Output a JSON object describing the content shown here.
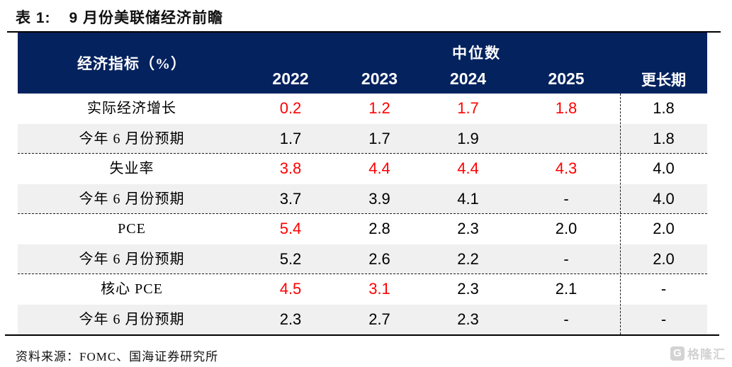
{
  "page": {
    "title_label": "表 1:",
    "title_text": "9 月份美联储经济前瞻",
    "source": "资料来源：FOMC、国海证券研究所"
  },
  "colors": {
    "header_bg": "#04225e",
    "highlight_red": "#fe0000",
    "shaded_row": "#f0f0f0",
    "watermark_gray": "#d3d3d3"
  },
  "watermark": {
    "icon": "G",
    "text": "格隆汇"
  },
  "table": {
    "header": {
      "indicator_label": "经济指标（%）",
      "median_label": "中位数",
      "years": [
        "2022",
        "2023",
        "2024",
        "2025"
      ],
      "longer_run_label": "更长期"
    },
    "rows": [
      {
        "label": "实际经济增长",
        "shaded": false,
        "group_end": false,
        "values": [
          {
            "v": "0.2",
            "red": true
          },
          {
            "v": "1.2",
            "red": true
          },
          {
            "v": "1.7",
            "red": true
          },
          {
            "v": "1.8",
            "red": true
          },
          {
            "v": "1.8",
            "red": false
          }
        ]
      },
      {
        "label": "今年 6 月份预期",
        "shaded": true,
        "group_end": true,
        "values": [
          {
            "v": "1.7",
            "red": false
          },
          {
            "v": "1.7",
            "red": false
          },
          {
            "v": "1.9",
            "red": false
          },
          {
            "v": "",
            "red": false
          },
          {
            "v": "1.8",
            "red": false
          }
        ]
      },
      {
        "label": "失业率",
        "shaded": false,
        "group_end": false,
        "values": [
          {
            "v": "3.8",
            "red": true
          },
          {
            "v": "4.4",
            "red": true
          },
          {
            "v": "4.4",
            "red": true
          },
          {
            "v": "4.3",
            "red": true
          },
          {
            "v": "4.0",
            "red": false
          }
        ]
      },
      {
        "label": "今年 6 月份预期",
        "shaded": true,
        "group_end": true,
        "values": [
          {
            "v": "3.7",
            "red": false
          },
          {
            "v": "3.9",
            "red": false
          },
          {
            "v": "4.1",
            "red": false
          },
          {
            "v": "-",
            "red": false
          },
          {
            "v": "4.0",
            "red": false
          }
        ]
      },
      {
        "label": "PCE",
        "shaded": false,
        "group_end": false,
        "values": [
          {
            "v": "5.4",
            "red": true
          },
          {
            "v": "2.8",
            "red": false
          },
          {
            "v": "2.3",
            "red": false
          },
          {
            "v": "2.0",
            "red": false
          },
          {
            "v": "2.0",
            "red": false
          }
        ]
      },
      {
        "label": "今年 6 月份预期",
        "shaded": true,
        "group_end": true,
        "values": [
          {
            "v": "5.2",
            "red": false
          },
          {
            "v": "2.6",
            "red": false
          },
          {
            "v": "2.2",
            "red": false
          },
          {
            "v": "-",
            "red": false
          },
          {
            "v": "2.0",
            "red": false
          }
        ]
      },
      {
        "label": "核心 PCE",
        "shaded": false,
        "group_end": false,
        "values": [
          {
            "v": "4.5",
            "red": true
          },
          {
            "v": "3.1",
            "red": true
          },
          {
            "v": "2.3",
            "red": false
          },
          {
            "v": "2.1",
            "red": false
          },
          {
            "v": "-",
            "red": false
          }
        ]
      },
      {
        "label": "今年 6 月份预期",
        "shaded": true,
        "group_end": false,
        "values": [
          {
            "v": "2.3",
            "red": false
          },
          {
            "v": "2.7",
            "red": false
          },
          {
            "v": "2.3",
            "red": false
          },
          {
            "v": "-",
            "red": false
          },
          {
            "v": "-",
            "red": false
          }
        ]
      }
    ]
  },
  "chart_data": {
    "type": "table",
    "title": "表 1: 9 月份美联储经济前瞻",
    "columns": [
      "经济指标（%）",
      "2022",
      "2023",
      "2024",
      "2025",
      "更长期"
    ],
    "group_header": "中位数",
    "rows": [
      [
        "实际经济增长",
        "0.2",
        "1.2",
        "1.7",
        "1.8",
        "1.8"
      ],
      [
        "今年 6 月份预期",
        "1.7",
        "1.7",
        "1.9",
        "",
        "1.8"
      ],
      [
        "失业率",
        "3.8",
        "4.4",
        "4.4",
        "4.3",
        "4.0"
      ],
      [
        "今年 6 月份预期",
        "3.7",
        "3.9",
        "4.1",
        "-",
        "4.0"
      ],
      [
        "PCE",
        "5.4",
        "2.8",
        "2.3",
        "2.0",
        "2.0"
      ],
      [
        "今年 6 月份预期",
        "5.2",
        "2.6",
        "2.2",
        "-",
        "2.0"
      ],
      [
        "核心 PCE",
        "4.5",
        "3.1",
        "2.3",
        "2.1",
        "-"
      ],
      [
        "今年 6 月份预期",
        "2.3",
        "2.7",
        "2.3",
        "-",
        "-"
      ]
    ],
    "source": "资料来源：FOMC、国海证券研究所"
  }
}
